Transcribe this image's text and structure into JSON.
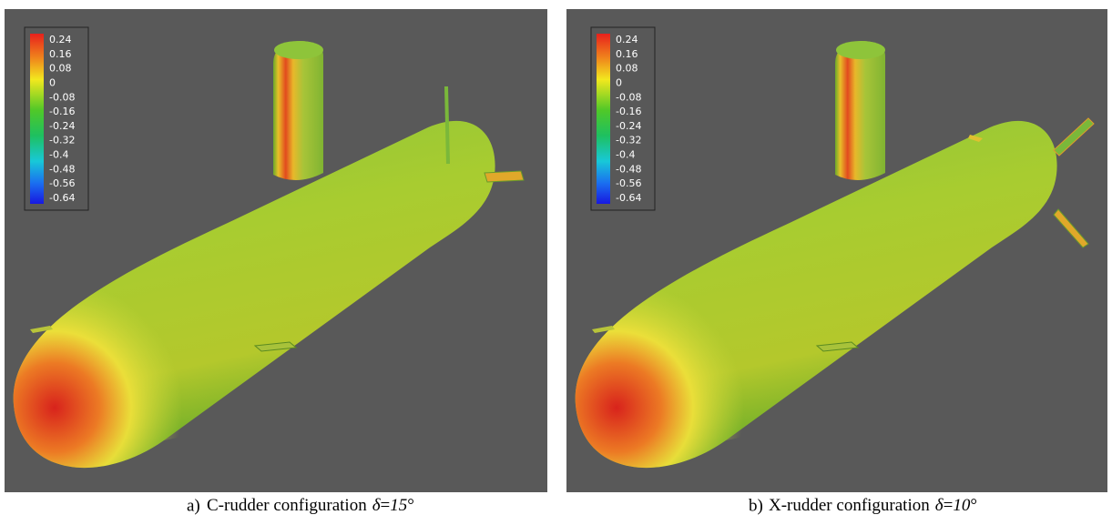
{
  "panels": [
    {
      "colorbar": {
        "ticks": [
          0.24,
          0.16,
          0.08,
          0,
          -0.08,
          -0.16,
          -0.24,
          -0.32,
          -0.4,
          -0.48,
          -0.56,
          -0.64
        ]
      },
      "caption": {
        "label": "a)",
        "text": "C-rudder configuration",
        "symbol": "δ",
        "equals": "=",
        "angle": "15",
        "degree": "°"
      }
    },
    {
      "colorbar": {
        "ticks": [
          0.24,
          0.16,
          0.08,
          0,
          -0.08,
          -0.16,
          -0.24,
          -0.32,
          -0.4,
          -0.48,
          -0.56,
          -0.64
        ]
      },
      "caption": {
        "label": "b)",
        "text": "X-rudder configuration",
        "symbol": "δ",
        "equals": "=",
        "angle": "10",
        "degree": "°"
      }
    }
  ]
}
